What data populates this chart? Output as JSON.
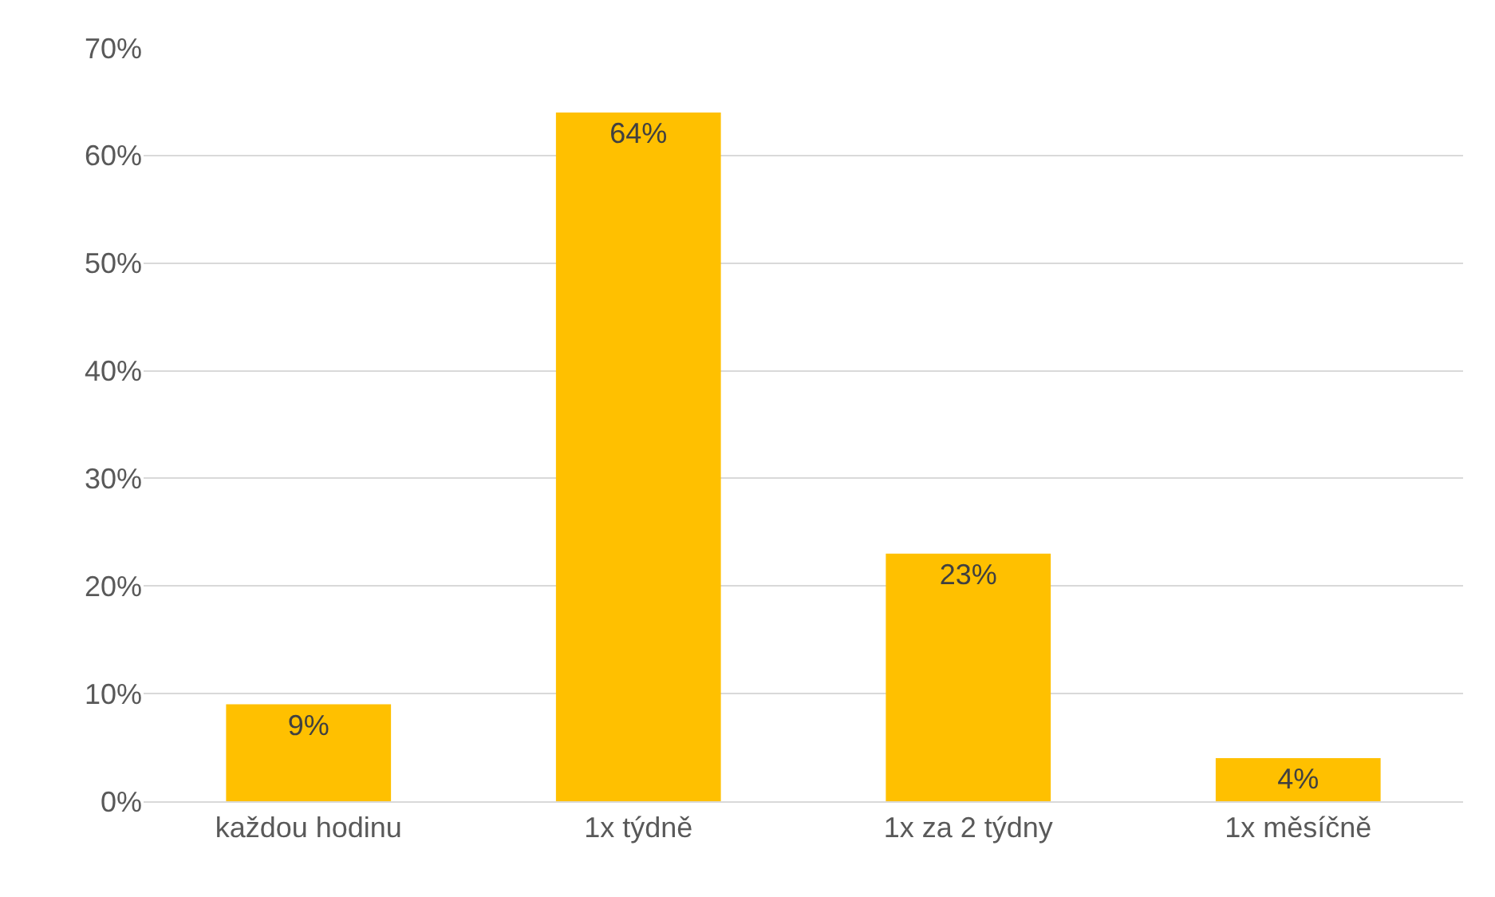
{
  "chart_data": {
    "type": "bar",
    "categories": [
      "každou hodinu",
      "1x týdně",
      "1x za 2 týdny",
      "1x měsíčně"
    ],
    "values": [
      9,
      64,
      23,
      4
    ],
    "value_labels": [
      "9%",
      "64%",
      "23%",
      "4%"
    ],
    "color": "#ffc000",
    "ylim": [
      0,
      70
    ],
    "yticks": [
      {
        "value": 0,
        "label": "0%"
      },
      {
        "value": 10,
        "label": "10%"
      },
      {
        "value": 20,
        "label": "20%"
      },
      {
        "value": 30,
        "label": "30%"
      },
      {
        "value": 40,
        "label": "40%"
      },
      {
        "value": 50,
        "label": "50%"
      },
      {
        "value": 60,
        "label": "60%"
      },
      {
        "value": 70,
        "label": "70%"
      }
    ],
    "grid": "y",
    "legend": false
  }
}
